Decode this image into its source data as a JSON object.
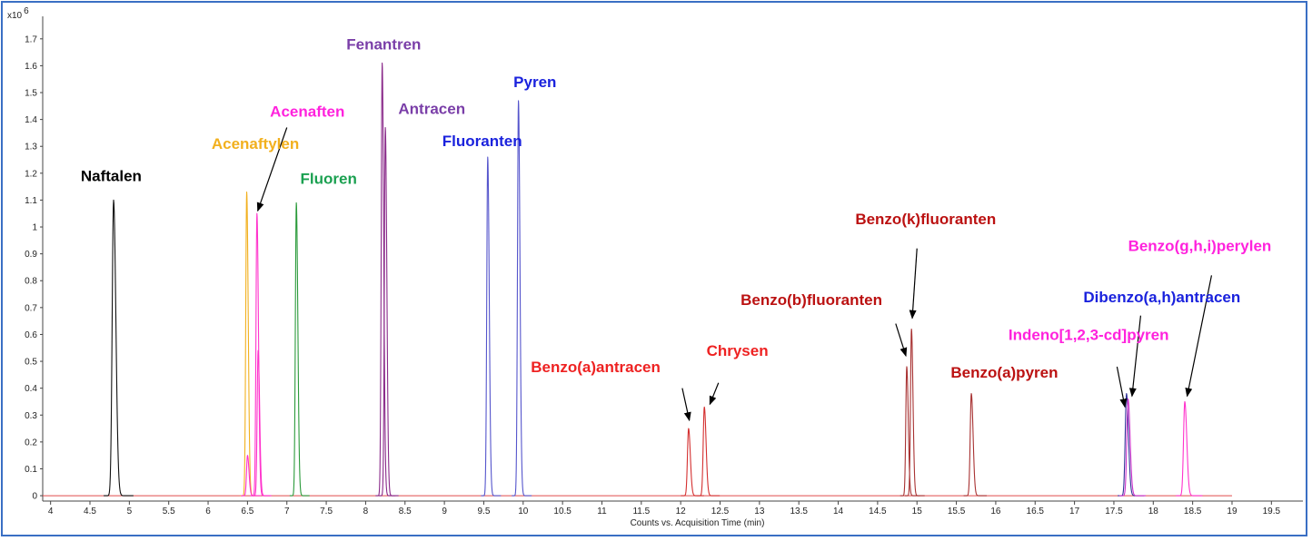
{
  "chart_data": {
    "type": "line",
    "title": "",
    "xlabel": "Counts vs. Acquisition Time (min)",
    "ylabel": "",
    "y_multiplier_label": "x10",
    "y_multiplier_exp": "6",
    "xlim": [
      3.9,
      19.9
    ],
    "ylim": [
      -0.02,
      1.75
    ],
    "x_ticks": [
      "4",
      "4.5",
      "5",
      "5.5",
      "6",
      "6.5",
      "7",
      "7.5",
      "8",
      "8.5",
      "9",
      "9.5",
      "10",
      "10.5",
      "11",
      "11.5",
      "12",
      "12.5",
      "13",
      "13.5",
      "14",
      "14.5",
      "15",
      "15.5",
      "16",
      "16.5",
      "17",
      "17.5",
      "18",
      "18.5",
      "19",
      "19.5"
    ],
    "y_ticks": [
      "0",
      "0.1",
      "0.2",
      "0.3",
      "0.4",
      "0.5",
      "0.6",
      "0.7",
      "0.8",
      "0.9",
      "1",
      "1.1",
      "1.2",
      "1.3",
      "1.4",
      "1.5",
      "1.6",
      "1.7"
    ],
    "baseline": {
      "x_start": 3.9,
      "x_end": 19.0,
      "color": "#e04a4a"
    },
    "peaks": [
      {
        "name": "Naftalen",
        "rt": 4.8,
        "height": 1.1,
        "width": 0.018,
        "color": "#111111"
      },
      {
        "name": "Acenaftylen",
        "rt": 6.49,
        "height": 1.13,
        "width": 0.012,
        "color": "#f2b01e"
      },
      {
        "name": "Acenaftylen minor",
        "rt": 6.5,
        "height": 0.15,
        "width": 0.012,
        "color": "#ff33cc"
      },
      {
        "name": "Acenaften",
        "rt": 6.62,
        "height": 1.05,
        "width": 0.012,
        "color": "#ff33cc"
      },
      {
        "name": "Acenaften shoulder",
        "rt": 6.635,
        "height": 0.54,
        "width": 0.012,
        "color": "#ff33cc"
      },
      {
        "name": "Fluoren",
        "rt": 7.12,
        "height": 1.09,
        "width": 0.012,
        "color": "#2a9a3a"
      },
      {
        "name": "Fenantren",
        "rt": 8.21,
        "height": 1.61,
        "width": 0.012,
        "color": "#8a2a8a"
      },
      {
        "name": "Antracen",
        "rt": 8.25,
        "height": 1.37,
        "width": 0.012,
        "color": "#8a2a8a"
      },
      {
        "name": "Fluoranten",
        "rt": 9.55,
        "height": 1.26,
        "width": 0.012,
        "color": "#5555cc"
      },
      {
        "name": "Pyren",
        "rt": 9.94,
        "height": 1.47,
        "width": 0.012,
        "color": "#5555cc"
      },
      {
        "name": "Benzo(a)antracen",
        "rt": 12.1,
        "height": 0.25,
        "width": 0.014,
        "color": "#d43030"
      },
      {
        "name": "Chrysen",
        "rt": 12.3,
        "height": 0.33,
        "width": 0.014,
        "color": "#d43030"
      },
      {
        "name": "Benzo(b)fluoranten",
        "rt": 14.87,
        "height": 0.48,
        "width": 0.012,
        "color": "#a83232"
      },
      {
        "name": "Benzo(k)fluoranten",
        "rt": 14.93,
        "height": 0.62,
        "width": 0.012,
        "color": "#a83232"
      },
      {
        "name": "Benzo(a)pyren",
        "rt": 15.69,
        "height": 0.38,
        "width": 0.014,
        "color": "#a83232"
      },
      {
        "name": "Dibenzo(a,h)antracen",
        "rt": 17.66,
        "height": 0.38,
        "width": 0.016,
        "color": "#333399"
      },
      {
        "name": "Indeno[1,2,3-cd]pyren",
        "rt": 17.68,
        "height": 0.36,
        "width": 0.016,
        "color": "#cc33cc"
      },
      {
        "name": "Benzo(g,h,i)perylen",
        "rt": 18.4,
        "height": 0.35,
        "width": 0.016,
        "color": "#ff33cc"
      }
    ],
    "annotations": [
      {
        "text": "Naftalen",
        "color": "#000000",
        "x": 4.77,
        "y": 1.17
      },
      {
        "text": "Acenaftylen",
        "color": "#f2b01e",
        "x": 6.6,
        "y": 1.29
      },
      {
        "text": "Acenaften",
        "color": "#ff22dd",
        "x": 7.26,
        "y": 1.41
      },
      {
        "text": "Fluoren",
        "color": "#1aa050",
        "x": 7.53,
        "y": 1.16
      },
      {
        "text": "Fenantren",
        "color": "#7a3ea8",
        "x": 8.23,
        "y": 1.66
      },
      {
        "text": "Antracen",
        "color": "#7a3ea8",
        "x": 8.84,
        "y": 1.42
      },
      {
        "text": "Fluoranten",
        "color": "#1a22dd",
        "x": 9.48,
        "y": 1.3
      },
      {
        "text": "Pyren",
        "color": "#1a22dd",
        "x": 10.15,
        "y": 1.52
      },
      {
        "text": "Benzo(a)antracen",
        "color": "#ee2222",
        "x": 10.92,
        "y": 0.46
      },
      {
        "text": "Chrysen",
        "color": "#ee2222",
        "x": 12.72,
        "y": 0.52
      },
      {
        "text": "Benzo(b)fluoranten",
        "color": "#bb1111",
        "x": 13.66,
        "y": 0.71
      },
      {
        "text": "Benzo(k)fluoranten",
        "color": "#bb1111",
        "x": 15.11,
        "y": 1.01
      },
      {
        "text": "Benzo(a)pyren",
        "color": "#bb1111",
        "x": 16.11,
        "y": 0.44
      },
      {
        "text": "Benzo(g,h,i)perylen",
        "color": "#ff22dd",
        "x": 18.59,
        "y": 0.91
      },
      {
        "text": "Dibenzo(a,h)antracen",
        "color": "#1a22dd",
        "x": 18.11,
        "y": 0.72
      },
      {
        "text": "Indeno[1,2,3-cd]pyren",
        "color": "#ff22dd",
        "x": 17.18,
        "y": 0.58
      }
    ],
    "arrows": [
      {
        "from": [
          7.0,
          1.37
        ],
        "to": [
          6.63,
          1.06
        ]
      },
      {
        "from": [
          12.02,
          0.4
        ],
        "to": [
          12.11,
          0.28
        ]
      },
      {
        "from": [
          12.48,
          0.42
        ],
        "to": [
          12.37,
          0.34
        ]
      },
      {
        "from": [
          14.73,
          0.64
        ],
        "to": [
          14.86,
          0.52
        ]
      },
      {
        "from": [
          15.0,
          0.92
        ],
        "to": [
          14.94,
          0.66
        ]
      },
      {
        "from": [
          17.54,
          0.48
        ],
        "to": [
          17.64,
          0.33
        ]
      },
      {
        "from": [
          17.84,
          0.67
        ],
        "to": [
          17.73,
          0.37
        ]
      },
      {
        "from": [
          18.74,
          0.82
        ],
        "to": [
          18.43,
          0.37
        ]
      }
    ]
  }
}
